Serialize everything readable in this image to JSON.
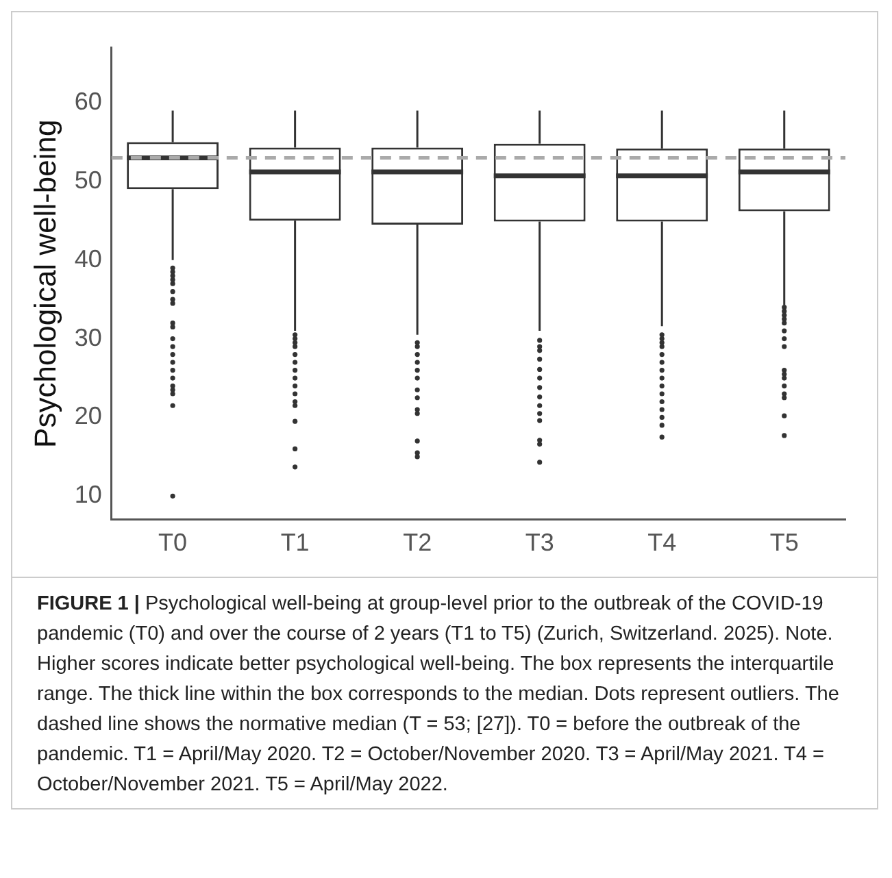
{
  "chart_data": {
    "type": "box",
    "ylabel": "Psychological well-being",
    "categories": [
      "T0",
      "T1",
      "T2",
      "T3",
      "T4",
      "T5"
    ],
    "boxes": [
      {
        "low": 40,
        "q1": 49,
        "median": 53,
        "q3": 55,
        "high": 59,
        "outliers": [
          39,
          38.5,
          38,
          37.5,
          37,
          36,
          35,
          34.5,
          32,
          31.5,
          30,
          29,
          28,
          27,
          26,
          25,
          24,
          23.5,
          23,
          21.5,
          10
        ]
      },
      {
        "low": 31,
        "q1": 45,
        "median": 51.2,
        "q3": 54.3,
        "high": 59,
        "outliers": [
          30.5,
          30,
          29.5,
          29,
          28,
          27,
          26,
          25,
          24,
          23,
          22,
          21.5,
          19.5,
          16,
          13.7
        ]
      },
      {
        "low": 30.5,
        "q1": 44.5,
        "median": 51.2,
        "q3": 54.3,
        "high": 59,
        "outliers": [
          29.5,
          29,
          28,
          27,
          26,
          25,
          23.5,
          22.5,
          21,
          20.5,
          17,
          15.5,
          15
        ]
      },
      {
        "low": 31,
        "q1": 44.9,
        "median": 50.7,
        "q3": 54.8,
        "high": 59,
        "outliers": [
          29.8,
          29,
          28.5,
          27.4,
          26.1,
          25,
          23.8,
          22.6,
          21.5,
          20.5,
          19.6,
          17.1,
          16.6,
          14.3
        ]
      },
      {
        "low": 31.6,
        "q1": 44.9,
        "median": 50.7,
        "q3": 54.2,
        "high": 59,
        "outliers": [
          30.5,
          30,
          29.5,
          29,
          28,
          27,
          26,
          25,
          24,
          23,
          22,
          21,
          20,
          19,
          17.5
        ]
      },
      {
        "low": 34.3,
        "q1": 46.2,
        "median": 51.2,
        "q3": 54.2,
        "high": 59,
        "outliers": [
          34,
          33.5,
          33,
          32.5,
          32,
          31,
          30,
          29,
          26,
          25.5,
          25,
          24,
          23,
          22.5,
          20.2,
          17.7
        ]
      }
    ],
    "ylim": [
      7,
      67
    ],
    "yticks": [
      10,
      20,
      30,
      40,
      50,
      60
    ],
    "grid": false,
    "legend": false,
    "ref_lines": [
      {
        "axis": "y",
        "value": 53,
        "color": "#aaaaaa",
        "line_style": "dashed"
      }
    ],
    "annotations": [
      "FIGURE 1 |",
      "Psychological well-being at group-level prior to the outbreak of the COVID-19 pandemic (T0) and over the course of 2 years (T1 to T5) (Zurich, Switzerland. 2025). Note. Higher scores indicate better psychological well-being. The box represents the interquartile range. The thick line within the box corresponds to the median. Dots represent outliers. The dashed line shows the normative median (T = 53; [27]). T0 = before the outbreak of the pandemic. T1 = April/May 2020. T2 = October/November 2020. T3 = April/May 2021. T4 = October/November 2021. T5 = April/May 2022."
    ]
  }
}
